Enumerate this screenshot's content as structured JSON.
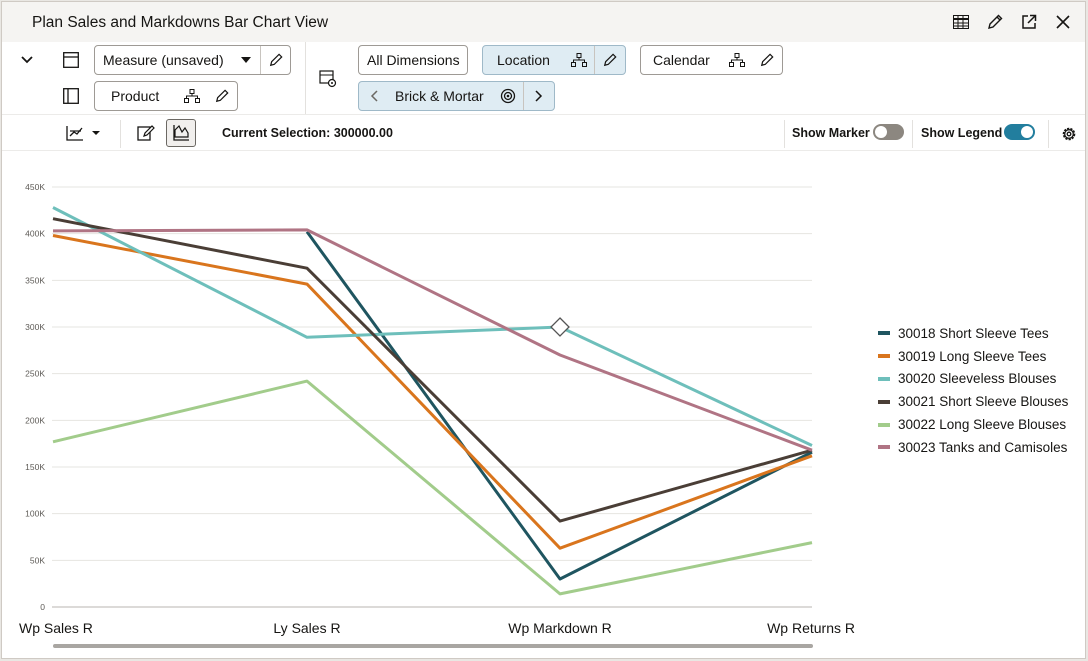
{
  "window": {
    "title": "Plan Sales and Markdowns Bar Chart View",
    "icons": [
      "table-icon",
      "edit-icon",
      "expand-icon",
      "close-icon"
    ]
  },
  "dimensions": {
    "measure_label": "Measure (unsaved)",
    "product_label": "Product",
    "all_dimensions_label": "All Dimensions",
    "location_label": "Location",
    "calendar_label": "Calendar",
    "location_value": "Brick & Mortar"
  },
  "toolbar": {
    "current_selection": "Current Selection: 300000.00",
    "show_marker_label": "Show Marker",
    "show_marker_on": false,
    "show_legend_label": "Show Legend",
    "show_legend_on": true
  },
  "colors": {
    "accent": "#227e9e",
    "toggle_off": "#8c8780"
  },
  "chart_data": {
    "type": "line",
    "categories": [
      "Wp Sales R",
      "Ly Sales R",
      "Wp Markdown R",
      "Wp Returns R"
    ],
    "y_ticks": [
      "0",
      "50K",
      "100K",
      "150K",
      "200K",
      "250K",
      "300K",
      "350K",
      "400K",
      "450K"
    ],
    "ylim": [
      0,
      450000
    ],
    "grid": true,
    "legend_position": "right",
    "selected_point": {
      "series": "30020 Sleeveless Blouses",
      "category": "Wp Markdown R",
      "value": 300000
    },
    "series": [
      {
        "name": "30018 Short Sleeve Tees",
        "color": "#1f5560",
        "values": [
          null,
          402000,
          30000,
          166000
        ]
      },
      {
        "name": "30019 Long Sleeve Tees",
        "color": "#d9751d",
        "values": [
          398000,
          346000,
          63000,
          162000
        ]
      },
      {
        "name": "30020 Sleeveless Blouses",
        "color": "#6ebfbb",
        "values": [
          428000,
          289000,
          300000,
          173000
        ]
      },
      {
        "name": "30021 Short Sleeve Blouses",
        "color": "#4a3e36",
        "values": [
          416000,
          363000,
          92000,
          168000
        ]
      },
      {
        "name": "30022 Long Sleeve Blouses",
        "color": "#a2cc8b",
        "values": [
          177000,
          242000,
          14000,
          69000
        ]
      },
      {
        "name": "30023 Tanks and Camisoles",
        "color": "#b07484",
        "values": [
          403000,
          404000,
          270000,
          168000
        ]
      }
    ]
  }
}
